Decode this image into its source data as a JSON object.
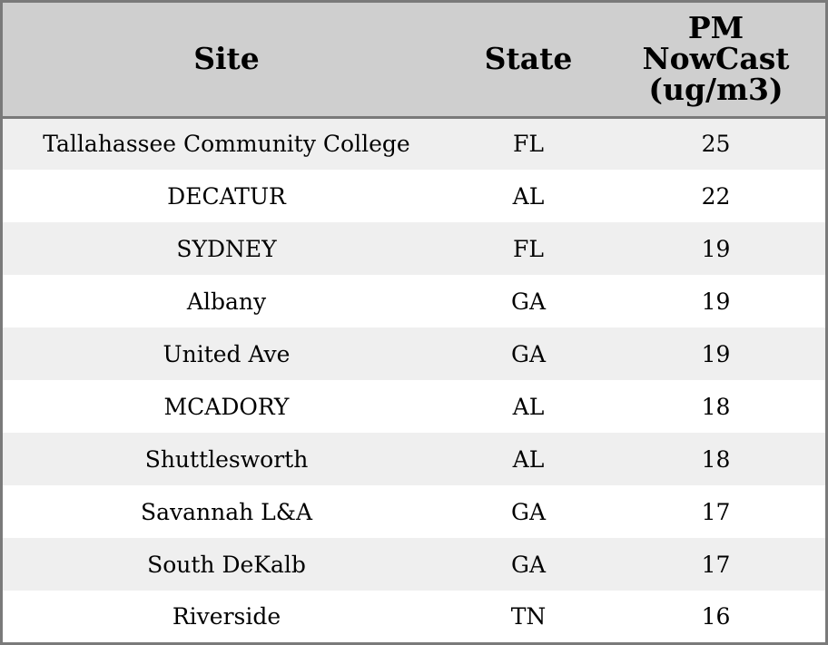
{
  "table": {
    "columns": [
      "Site",
      "State",
      "PM NowCast (ug/m3)"
    ],
    "header_lines": {
      "pm": [
        "PM",
        "NowCast",
        "(ug/m3)"
      ]
    },
    "rows": [
      {
        "site": "Tallahassee Community College",
        "state": "FL",
        "pm": "25"
      },
      {
        "site": "DECATUR",
        "state": "AL",
        "pm": "22"
      },
      {
        "site": "SYDNEY",
        "state": "FL",
        "pm": "19"
      },
      {
        "site": "Albany",
        "state": "GA",
        "pm": "19"
      },
      {
        "site": "United Ave",
        "state": "GA",
        "pm": "19"
      },
      {
        "site": "MCADORY",
        "state": "AL",
        "pm": "18"
      },
      {
        "site": "Shuttlesworth",
        "state": "AL",
        "pm": "18"
      },
      {
        "site": "Savannah L&A",
        "state": "GA",
        "pm": "17"
      },
      {
        "site": "South DeKalb",
        "state": "GA",
        "pm": "17"
      },
      {
        "site": "Riverside",
        "state": "TN",
        "pm": "16"
      }
    ]
  },
  "colors": {
    "header_bg": "#cfcfcf",
    "row_alt_bg": "#efefef",
    "row_bg": "#ffffff",
    "border": "#7a7a7a"
  }
}
